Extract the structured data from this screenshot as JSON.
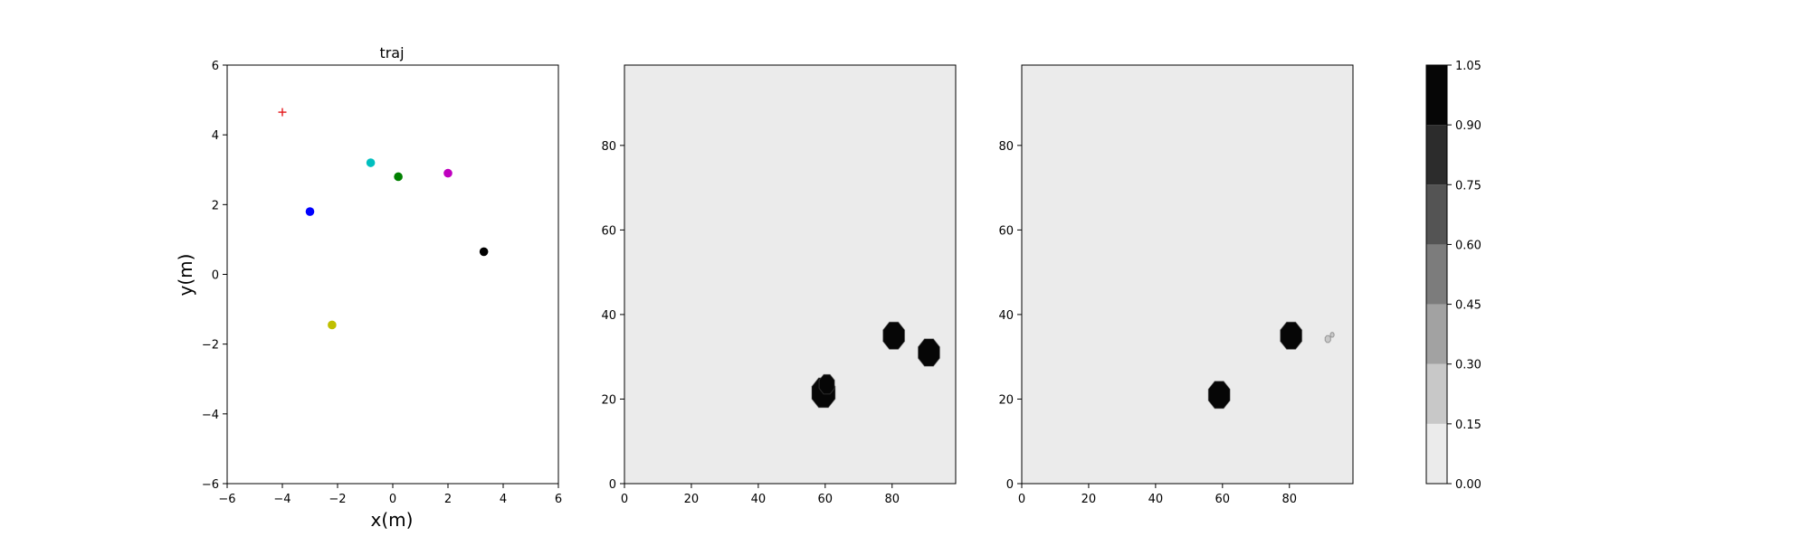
{
  "chart_data": [
    {
      "type": "scatter",
      "title": "traj",
      "xlabel": "x(m)",
      "ylabel": "y(m)",
      "xlim": [
        -6,
        6
      ],
      "ylim": [
        -6,
        6
      ],
      "xticks": [
        "−6",
        "−4",
        "−2",
        "0",
        "2",
        "4",
        "6"
      ],
      "yticks": [
        "−6",
        "−4",
        "−2",
        "0",
        "2",
        "4",
        "6"
      ],
      "xtick_values": [
        -6,
        -4,
        -2,
        0,
        2,
        4,
        6
      ],
      "ytick_values": [
        -6,
        -4,
        -2,
        0,
        2,
        4,
        6
      ],
      "grid": false,
      "points": [
        {
          "name": "goal",
          "x": -4.0,
          "y": 4.65,
          "color": "#e41a1c",
          "marker": "+"
        },
        {
          "name": "blue",
          "x": -3.0,
          "y": 1.8,
          "color": "#0000ff",
          "marker": "o"
        },
        {
          "name": "cyan",
          "x": -0.8,
          "y": 3.2,
          "color": "#00bfbf",
          "marker": "o"
        },
        {
          "name": "green",
          "x": 0.2,
          "y": 2.8,
          "color": "#008000",
          "marker": "o"
        },
        {
          "name": "magenta",
          "x": 2.0,
          "y": 2.9,
          "color": "#bf00bf",
          "marker": "o"
        },
        {
          "name": "black",
          "x": 3.3,
          "y": 0.65,
          "color": "#000000",
          "marker": "o"
        },
        {
          "name": "yellow",
          "x": -2.2,
          "y": -1.45,
          "color": "#bfbf00",
          "marker": "o"
        }
      ]
    },
    {
      "type": "heatmap",
      "title": "",
      "xlim": [
        0,
        99
      ],
      "ylim": [
        0,
        99
      ],
      "xticks": [
        "0",
        "20",
        "40",
        "60",
        "80"
      ],
      "yticks": [
        "0",
        "20",
        "40",
        "60",
        "80"
      ],
      "xtick_values": [
        0,
        20,
        40,
        60,
        80
      ],
      "ytick_values": [
        0,
        20,
        40,
        60,
        80
      ],
      "background_value": 0.0,
      "blobs": [
        {
          "x": 59.5,
          "y": 21.5,
          "r": 3.8,
          "value": 1.0
        },
        {
          "x": 60.5,
          "y": 23.5,
          "r": 2.5,
          "value": 1.0
        },
        {
          "x": 80.5,
          "y": 35.0,
          "r": 3.5,
          "value": 1.0
        },
        {
          "x": 91.0,
          "y": 31.0,
          "r": 3.5,
          "value": 1.0
        }
      ]
    },
    {
      "type": "heatmap",
      "title": "",
      "xlim": [
        0,
        99
      ],
      "ylim": [
        0,
        99
      ],
      "xticks": [
        "0",
        "20",
        "40",
        "60",
        "80"
      ],
      "yticks": [
        "0",
        "20",
        "40",
        "60",
        "80"
      ],
      "xtick_values": [
        0,
        20,
        40,
        60,
        80
      ],
      "ytick_values": [
        0,
        20,
        40,
        60,
        80
      ],
      "background_value": 0.0,
      "blobs": [
        {
          "x": 59.0,
          "y": 21.0,
          "r": 3.5,
          "value": 1.0
        },
        {
          "x": 80.5,
          "y": 35.0,
          "r": 3.5,
          "value": 1.0
        },
        {
          "x": 91.5,
          "y": 34.2,
          "r": 0.9,
          "value": 0.2
        },
        {
          "x": 92.8,
          "y": 35.2,
          "r": 0.6,
          "value": 0.2
        }
      ]
    }
  ],
  "colorbar": {
    "levels": [
      0.0,
      0.15,
      0.3,
      0.45,
      0.6,
      0.75,
      0.9,
      1.05
    ],
    "labels": [
      "0.00",
      "0.15",
      "0.30",
      "0.45",
      "0.60",
      "0.75",
      "0.90",
      "1.05"
    ],
    "colors": [
      "#ebebeb",
      "#c8c8c8",
      "#a2a2a2",
      "#7c7c7c",
      "#545454",
      "#2c2c2c",
      "#060606"
    ]
  }
}
